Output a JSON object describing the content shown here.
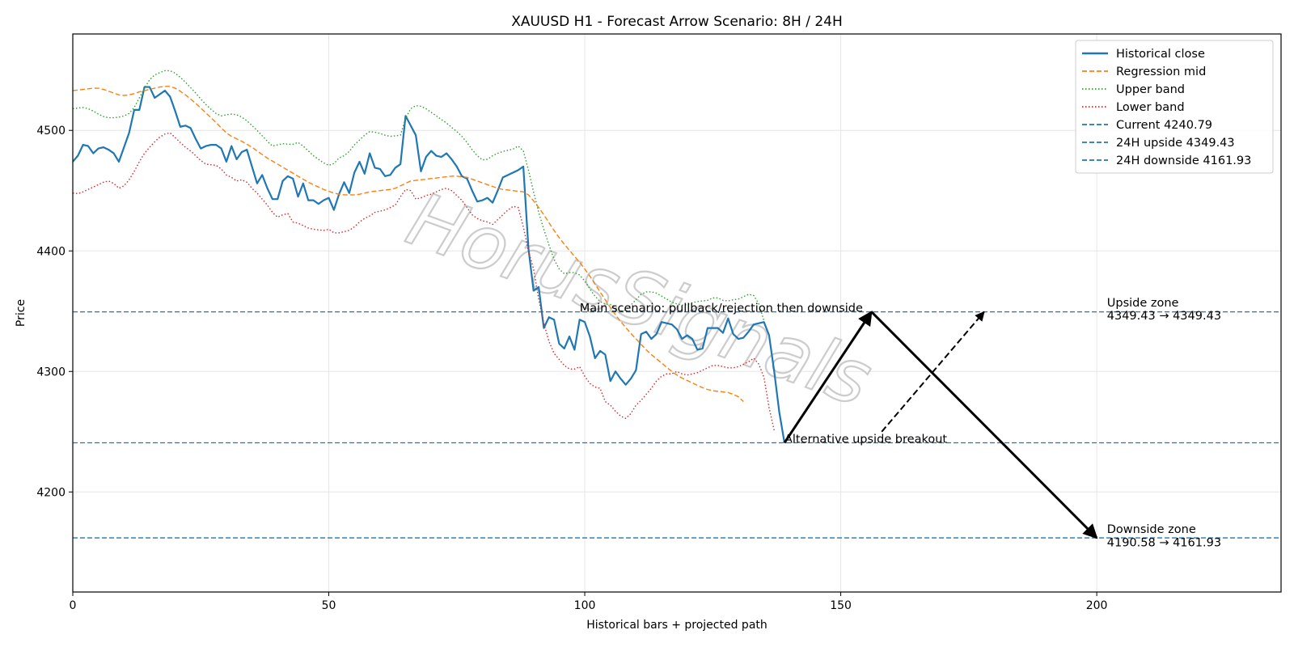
{
  "chart_data": {
    "type": "line",
    "title": "XAUUSD H1 - Forecast Arrow Scenario: 8H / 24H",
    "xlabel": "Historical bars + projected path",
    "ylabel": "Price",
    "xlim": [
      0,
      236
    ],
    "ylim": [
      4117,
      4580
    ],
    "x_ticks": [
      0,
      50,
      100,
      150,
      200
    ],
    "y_ticks": [
      4200,
      4300,
      4400,
      4500
    ],
    "grid": true,
    "legend_position": "top-right",
    "watermark": "HorusSignals",
    "colors": {
      "close": "#1f77b4",
      "mid": "#ff7f0e",
      "upper": "#2ca02c",
      "lower": "#d62728",
      "level": "#1f77b4",
      "arrow": "#000000"
    },
    "series": [
      {
        "name": "Historical close",
        "style": "solid",
        "x0": 0,
        "values": [
          4474,
          4479,
          4488,
          4487,
          4481,
          4485,
          4486,
          4484,
          4481,
          4474,
          4486,
          4498,
          4517,
          4517,
          4536,
          4536,
          4527,
          4530,
          4533,
          4528,
          4516,
          4503,
          4504,
          4502,
          4493,
          4485,
          4487,
          4488,
          4488,
          4485,
          4474,
          4487,
          4476,
          4482,
          4484,
          4470,
          4456,
          4463,
          4452,
          4443,
          4443,
          4458,
          4462,
          4460,
          4445,
          4456,
          4442,
          4442,
          4439,
          4442,
          4444,
          4434,
          4447,
          4457,
          4448,
          4465,
          4474,
          4464,
          4481,
          4469,
          4468,
          4462,
          4463,
          4469,
          4472,
          4512,
          4504,
          4496,
          4466,
          4478,
          4483,
          4479,
          4478,
          4481,
          4476,
          4470,
          4462,
          4460,
          4450,
          4441,
          4442,
          4444,
          4440,
          4450,
          4461,
          4463,
          4465,
          4467,
          4470,
          4402,
          4367,
          4370,
          4336,
          4345,
          4343,
          4323,
          4319,
          4329,
          4318,
          4343,
          4341,
          4329,
          4311,
          4317,
          4314,
          4292,
          4300,
          4294,
          4289,
          4294,
          4301,
          4331,
          4333,
          4327,
          4331,
          4341,
          4340,
          4339,
          4335,
          4327,
          4330,
          4327,
          4318,
          4319,
          4336,
          4336,
          4336,
          4332,
          4344,
          4331,
          4327,
          4328,
          4333,
          4339,
          4340,
          4341,
          4330,
          4300,
          4266,
          4241
        ]
      },
      {
        "name": "Regression mid",
        "style": "dashed",
        "x0": 0,
        "values": [
          4533,
          4533.5,
          4534,
          4534.5,
          4535,
          4535,
          4534,
          4532.5,
          4531,
          4529.5,
          4529,
          4529.5,
          4530.5,
          4532,
          4533,
          4534,
          4535,
          4536,
          4536.5,
          4536.5,
          4535,
          4532.5,
          4529.5,
          4526,
          4522.5,
          4518.5,
          4514.5,
          4510.5,
          4506.5,
          4502,
          4498,
          4495,
          4493,
          4491,
          4488.5,
          4486,
          4483,
          4480,
          4477,
          4474.5,
          4472,
          4469.5,
          4467,
          4464.5,
          4462,
          4459.5,
          4457,
          4455,
          4453,
          4451,
          4449.5,
          4448,
          4447,
          4446.5,
          4446.5,
          4446.5,
          4447,
          4448,
          4449,
          4449.5,
          4450,
          4450.5,
          4451,
          4452,
          4454,
          4456,
          4458,
          4458.5,
          4459,
          4459.5,
          4460,
          4460.5,
          4461,
          4461.5,
          4462,
          4462,
          4461.5,
          4461,
          4459.5,
          4458,
          4456.5,
          4455,
          4453.5,
          4452,
          4451,
          4450.5,
          4450,
          4449.5,
          4449,
          4446.5,
          4441.5,
          4436,
          4430,
          4423.5,
          4417,
          4411,
          4405.5,
          4400.5,
          4395.5,
          4390.5,
          4385,
          4379,
          4372.5,
          4366,
          4359.5,
          4353,
          4347,
          4341.5,
          4336.5,
          4331.5,
          4327,
          4322.5,
          4318,
          4314,
          4310.5,
          4307,
          4303.5,
          4300,
          4297,
          4294.5,
          4292.5,
          4290.5,
          4288.5,
          4286.5,
          4285,
          4284,
          4283.5,
          4283,
          4282.5,
          4281,
          4279,
          4275
        ]
      },
      {
        "name": "Upper band",
        "style": "dotted",
        "x0": 0,
        "values": [
          4518,
          4518.5,
          4519,
          4518,
          4516,
          4513.5,
          4511.5,
          4510.5,
          4510.5,
          4511,
          4512,
          4514,
          4519,
          4527,
          4535,
          4542,
          4546,
          4548,
          4549.5,
          4549.5,
          4547.5,
          4544,
          4540,
          4535.5,
          4531,
          4526,
          4521.5,
          4517.5,
          4514,
          4512,
          4513,
          4513.5,
          4513,
          4511,
          4508,
          4504,
          4500,
          4495.5,
          4491,
          4487,
          4488,
          4489,
          4488.5,
          4488.5,
          4490,
          4487,
          4483,
          4479,
          4476,
          4473,
          4471,
          4472.5,
          4477,
          4479,
          4482.5,
          4488,
          4492,
          4496,
          4499,
          4498.5,
          4497.5,
          4496,
          4495,
          4495.5,
          4496,
          4510,
          4518,
          4520.5,
          4520,
          4518,
          4515,
          4512,
          4509,
          4506,
          4502.5,
          4499,
          4495,
          4490,
          4484,
          4479,
          4475.5,
          4476,
          4479,
          4481,
          4482.5,
          4483.5,
          4484.5,
          4487,
          4483,
          4467,
          4449,
          4432,
          4418,
          4405,
          4393,
          4385,
          4381,
          4382,
          4382,
          4380,
          4375,
          4368.5,
          4362.5,
          4358,
          4356,
          4355.5,
          4353,
          4350,
          4351,
          4355,
          4359.5,
          4364,
          4366,
          4366,
          4365,
          4362.5,
          4360,
          4357.5,
          4356,
          4355,
          4355.5,
          4357,
          4358,
          4358.5,
          4359,
          4361,
          4361,
          4359,
          4358.5,
          4359.5,
          4360,
          4362,
          4364,
          4363,
          4356,
          4342
        ]
      },
      {
        "name": "Lower band",
        "style": "dotted",
        "x0": 0,
        "values": [
          4448,
          4447.5,
          4449,
          4451,
          4453,
          4455,
          4457,
          4458,
          4456,
          4452,
          4454,
          4459,
          4466,
          4474,
          4481,
          4486,
          4490.5,
          4494.5,
          4497,
          4498,
          4494,
          4490,
          4486,
          4483,
          4479,
          4475,
          4472,
          4471.5,
          4471,
          4468,
          4463,
          4461,
          4458,
          4459,
          4457,
          4452,
          4448,
          4443,
          4438,
          4432,
          4428,
          4430,
          4431,
          4424,
          4423,
          4421,
          4419,
          4418,
          4417.5,
          4417,
          4418,
          4415,
          4415,
          4416,
          4417,
          4420,
          4424,
          4427,
          4429,
          4432,
          4433,
          4434,
          4436,
          4438,
          4445,
          4451,
          4450,
          4443,
          4444,
          4446,
          4447,
          4449,
          4451,
          4452,
          4450,
          4446,
          4442,
          4436,
          4430,
          4427,
          4425,
          4424,
          4422,
          4426,
          4430,
          4434,
          4437,
          4436,
          4420,
          4400,
          4385,
          4360,
          4340,
          4325,
          4315,
          4310,
          4305,
          4302,
          4302,
          4304,
          4296,
          4290,
          4287,
          4286,
          4275,
          4272,
          4267,
          4263,
          4261,
          4265,
          4272,
          4276,
          4281,
          4286,
          4292,
          4296,
          4298,
          4298,
          4300,
          4298,
          4297,
          4298,
          4299,
          4301,
          4303,
          4305,
          4305,
          4304,
          4303,
          4303,
          4304,
          4306,
          4308,
          4311,
          4306,
          4295,
          4270,
          4251
        ]
      }
    ],
    "levels": [
      {
        "name": "Current 4240.79",
        "value": 4240.79
      },
      {
        "name": "24H upside 4349.43",
        "value": 4349.43
      },
      {
        "name": "24H downside 4161.93",
        "value": 4161.93
      }
    ],
    "arrows": [
      {
        "from": [
          139,
          4240.79
        ],
        "to": [
          156,
          4349.43
        ],
        "style": "solid"
      },
      {
        "from": [
          156,
          4349.43
        ],
        "to": [
          200,
          4161.93
        ],
        "style": "solid"
      },
      {
        "from": [
          158,
          4250
        ],
        "to": [
          178,
          4349.43
        ],
        "style": "dashed"
      }
    ],
    "annotations": [
      {
        "text": "Main scenario: pullback/rejection then downside",
        "x": 99,
        "y": 4349.43
      },
      {
        "text": "Alternative upside breakout",
        "x": 139,
        "y": 4240.79
      },
      {
        "text": "Upside zone",
        "x": 202,
        "y": 4354
      },
      {
        "text": "4349.43 → 4349.43",
        "x": 202,
        "y": 4343
      },
      {
        "text": "Downside zone",
        "x": 202,
        "y": 4166
      },
      {
        "text": "4190.58 → 4161.93",
        "x": 202,
        "y": 4155
      }
    ]
  }
}
